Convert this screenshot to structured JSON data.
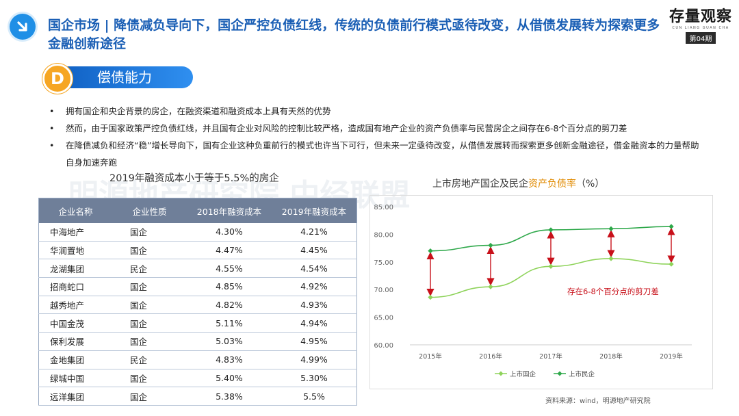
{
  "header": {
    "title": "国企市场 | 降债减负导向下，国企严控负债红线，传统的负债前行模式亟待改变，从借债发展转为探索更多金融创新途径",
    "brand_name": "存量观察",
    "brand_sub": "CUN LIANG GUAN CHA",
    "issue": "第04期",
    "watermark": "明源地产研究院   中经联盟"
  },
  "section": {
    "letter": "D",
    "label": "偿债能力"
  },
  "bullets": [
    "拥有国企和央企背景的房企，在融资渠道和融资成本上具有天然的优势",
    "然而，由于国家政策严控负债红线，并且国有企业对风险的控制比较严格，造成国有地产企业的资产负债率与民营房企之间存在6-8个百分点的剪刀差",
    "在降债减负和经济“稳”增长导向下，国有企业这种负重前行的模式也许当下可行，但未来一定亟待改变，从借债发展转而探索更多创新金融途径，借金融资本的力量帮助自身加速奔跑"
  ],
  "table": {
    "title": "2019年融资成本小于等于5.5%的房企",
    "headers": [
      "企业名称",
      "企业性质",
      "2018年融资成本",
      "2019年融资成本"
    ],
    "rows": [
      [
        "中海地产",
        "国企",
        "4.30%",
        "4.21%"
      ],
      [
        "华润置地",
        "国企",
        "4.47%",
        "4.45%"
      ],
      [
        "龙湖集团",
        "民企",
        "4.55%",
        "4.54%"
      ],
      [
        "招商蛇口",
        "国企",
        "4.85%",
        "4.92%"
      ],
      [
        "越秀地产",
        "国企",
        "4.82%",
        "4.93%"
      ],
      [
        "中国金茂",
        "国企",
        "5.11%",
        "4.94%"
      ],
      [
        "保利发展",
        "国企",
        "5.03%",
        "4.95%"
      ],
      [
        "金地集团",
        "民企",
        "4.83%",
        "4.99%"
      ],
      [
        "绿城中国",
        "国企",
        "5.40%",
        "5.30%"
      ],
      [
        "远洋集团",
        "国企",
        "5.38%",
        "5.5%"
      ]
    ]
  },
  "chart_data": {
    "type": "line",
    "title_prefix": "上市房地产国企及民企",
    "title_highlight": "资产负债率",
    "title_suffix": "（%）",
    "x": [
      "2015年",
      "2016年",
      "2017年",
      "2018年",
      "2019年"
    ],
    "ylim": [
      60,
      85
    ],
    "yticks": [
      "60.00",
      "65.00",
      "70.00",
      "75.00",
      "80.00",
      "85.00"
    ],
    "series": [
      {
        "name": "上市国企",
        "values": [
          68.6,
          70.5,
          74.2,
          75.6,
          74.6
        ],
        "color": "#8ed35a"
      },
      {
        "name": "上市民企",
        "values": [
          77.0,
          78.0,
          80.8,
          81.0,
          81.4
        ],
        "color": "#2ea84a"
      }
    ],
    "annotation": "存在6-8个百分点的剪刀差",
    "annotation_color": "#c8101a",
    "grid": false,
    "legend": "bottom"
  },
  "source": "资料来源：wind，明源地产研究院"
}
